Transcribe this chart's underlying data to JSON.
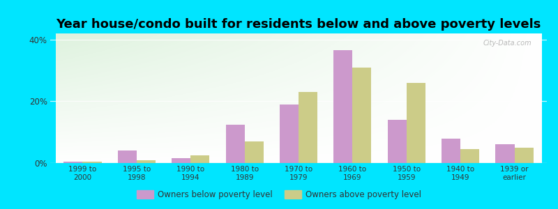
{
  "title": "Year house/condo built for residents below and above poverty levels",
  "categories": [
    "1999 to\n2000",
    "1995 to\n1998",
    "1990 to\n1994",
    "1980 to\n1989",
    "1970 to\n1979",
    "1960 to\n1969",
    "1950 to\n1959",
    "1940 to\n1949",
    "1939 or\nearlier"
  ],
  "below_poverty": [
    0.5,
    4.0,
    1.5,
    12.5,
    19.0,
    36.5,
    14.0,
    8.0,
    6.0
  ],
  "above_poverty": [
    0.5,
    1.0,
    2.5,
    7.0,
    23.0,
    31.0,
    26.0,
    4.5,
    5.0
  ],
  "below_color": "#cc99cc",
  "above_color": "#cccc88",
  "background_outer": "#00e5ff",
  "ylim": [
    0,
    42
  ],
  "yticks": [
    0,
    20,
    40
  ],
  "ytick_labels": [
    "0%",
    "20%",
    "40%"
  ],
  "bar_width": 0.35,
  "title_fontsize": 13,
  "legend_below_label": "Owners below poverty level",
  "legend_above_label": "Owners above poverty level"
}
